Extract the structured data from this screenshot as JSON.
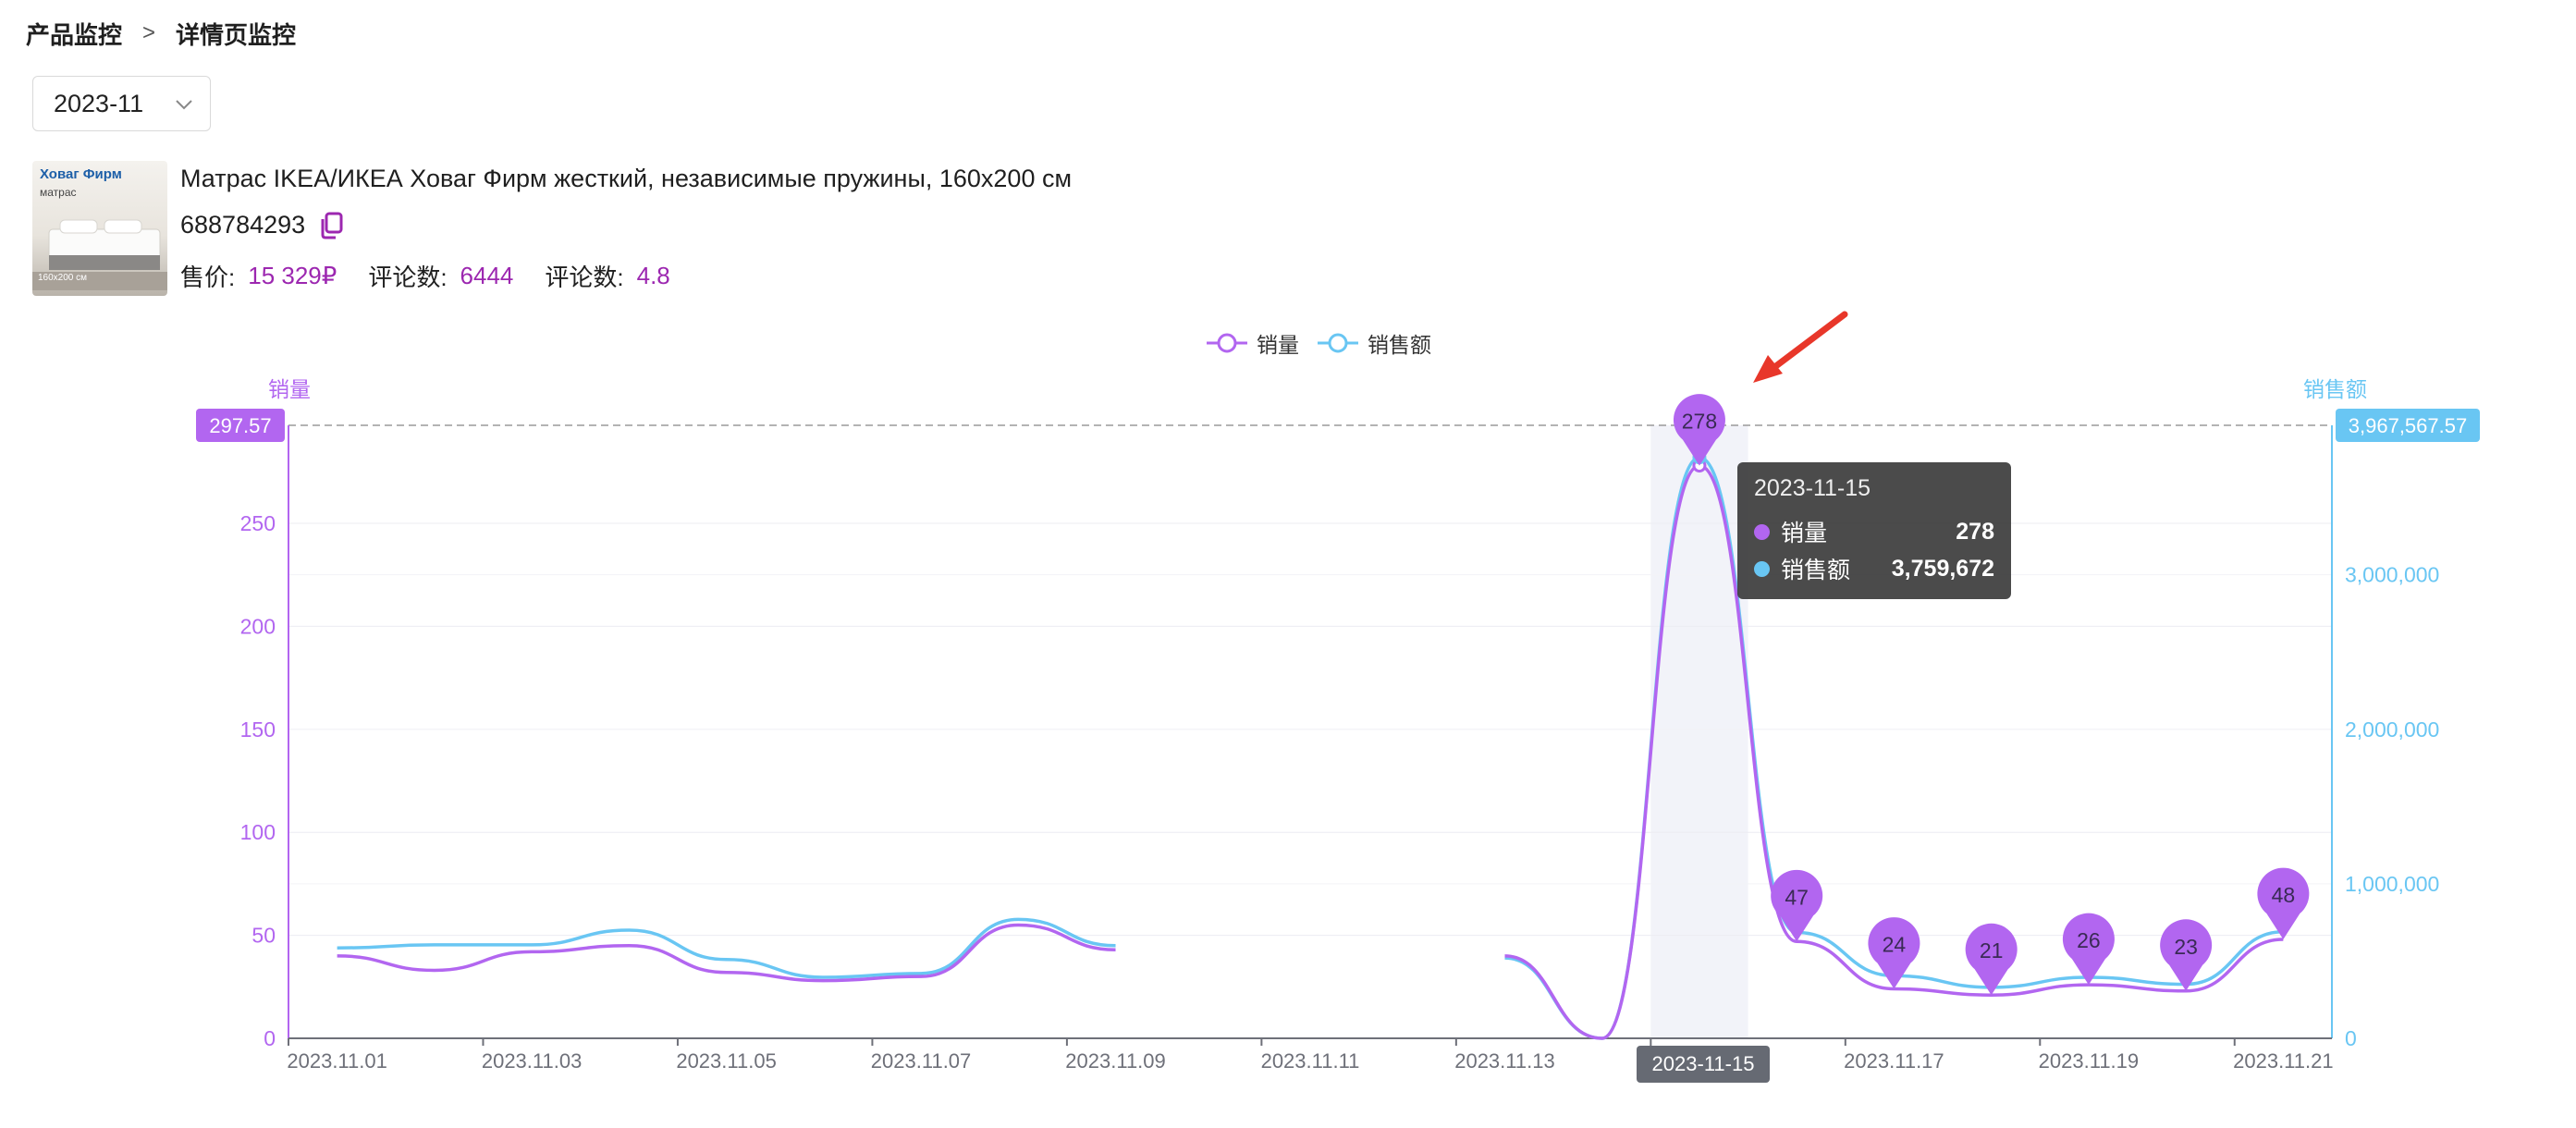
{
  "breadcrumb": {
    "parent": "产品监控",
    "separator": ">",
    "current": "详情页监控"
  },
  "month_select": {
    "value": "2023-11"
  },
  "product": {
    "thumb_brand": "Ховаг Фирм",
    "thumb_sub": "матрас",
    "thumb_size": "160x200 см",
    "title": "Матрас IKEA/ИКЕА Ховаг Фирм жесткий, независимые пружины, 160x200 см",
    "id": "688784293",
    "price_label": "售价:",
    "price_value": "15 329₽",
    "reviews_label": "评论数:",
    "reviews_value": "6444",
    "rating_label": "评论数:",
    "rating_value": "4.8"
  },
  "colors": {
    "sales_volume": "#b266f0",
    "sales_amount": "#69c6f3",
    "accent_text": "#9c27b0",
    "pointer_arrow": "#e8372a"
  },
  "tooltip": {
    "date": "2023-11-15",
    "rows": [
      {
        "name": "销量",
        "value": "278"
      },
      {
        "name": "销售额",
        "value": "3,759,672"
      }
    ]
  },
  "axis_pointer": {
    "x_label": "2023-11-15",
    "y_left_label": "297.57",
    "y_right_label": "3,967,567.57"
  },
  "chart_data": {
    "type": "line",
    "title": "",
    "legend": [
      "销量",
      "销售额"
    ],
    "legend_position": "top-center",
    "x": [
      "2023.11.01",
      "2023.11.02",
      "2023.11.03",
      "2023.11.04",
      "2023.11.05",
      "2023.11.06",
      "2023.11.07",
      "2023.11.08",
      "2023.11.09",
      "2023.11.10",
      "2023.11.11",
      "2023.11.12",
      "2023.11.13",
      "2023.11.14",
      "2023.11.15",
      "2023.11.16",
      "2023.11.17",
      "2023.11.18",
      "2023.11.19",
      "2023.11.20",
      "2023.11.21"
    ],
    "x_tick_labels": [
      "2023.11.01",
      "2023.11.03",
      "2023.11.05",
      "2023.11.07",
      "2023.11.09",
      "2023.11.11",
      "2023.11.13",
      "2023.11.17",
      "2023.11.19",
      "2023.11.21"
    ],
    "y_left": {
      "name": "销量",
      "min": 0,
      "max": 297.57,
      "ticks": [
        0,
        50,
        100,
        150,
        200,
        250
      ]
    },
    "y_right": {
      "name": "销售额",
      "min": 0,
      "max": 3967567.57,
      "ticks": [
        0,
        1000000,
        2000000,
        3000000
      ],
      "tick_labels": [
        "0",
        "1,000,000",
        "2,000,000",
        "3,000,000"
      ]
    },
    "series": [
      {
        "name": "销量",
        "axis": "left",
        "values": [
          40,
          33,
          42,
          45,
          32,
          28,
          30,
          55,
          43,
          null,
          null,
          null,
          40,
          0,
          278,
          47,
          24,
          21,
          26,
          23,
          48
        ]
      },
      {
        "name": "销售额",
        "axis": "right",
        "values": [
          585000,
          605000,
          605000,
          700000,
          510000,
          395000,
          420000,
          770000,
          600000,
          null,
          null,
          null,
          520000,
          0,
          3759672,
          685000,
          405000,
          330000,
          395000,
          350000,
          690000
        ]
      }
    ],
    "marker_labels": [
      {
        "x": "2023.11.15",
        "value": "278"
      },
      {
        "x": "2023.11.16",
        "value": "47"
      },
      {
        "x": "2023.11.17",
        "value": "24"
      },
      {
        "x": "2023.11.18",
        "value": "21"
      },
      {
        "x": "2023.11.19",
        "value": "26"
      },
      {
        "x": "2023.11.20",
        "value": "23"
      },
      {
        "x": "2023.11.21",
        "value": "48"
      }
    ],
    "highlighted_x": "2023.11.15",
    "grid": true
  }
}
